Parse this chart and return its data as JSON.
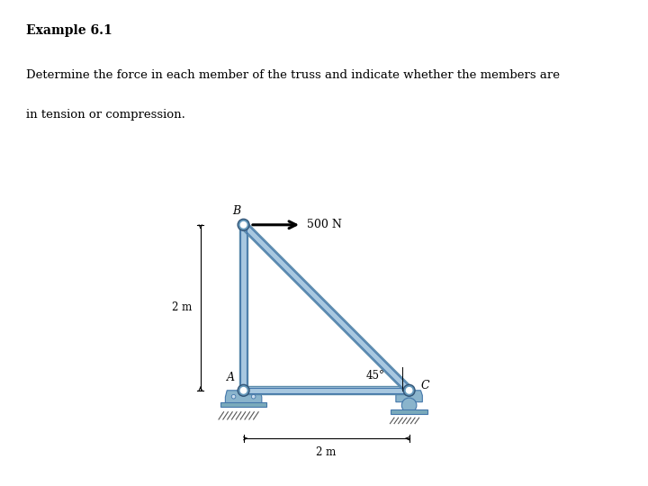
{
  "title": "Example 6.1",
  "description_line1": "Determine the force in each member of the truss and indicate whether the members are",
  "description_line2": "in tension or compression.",
  "top_bar_color": "#1a2a5a",
  "panel_bg": "#faf8e8",
  "title_fontsize": 10,
  "body_fontsize": 9.5,
  "member_color": "#a8c8e0",
  "member_edge_color": "#5a8aaa",
  "member_dark_line": "#4477aa",
  "joint_color": "#6699bb",
  "force_label": "500 N",
  "dim_2m_vertical": "2 m",
  "dim_2m_horizontal": "2 m",
  "angle_label": "45°"
}
